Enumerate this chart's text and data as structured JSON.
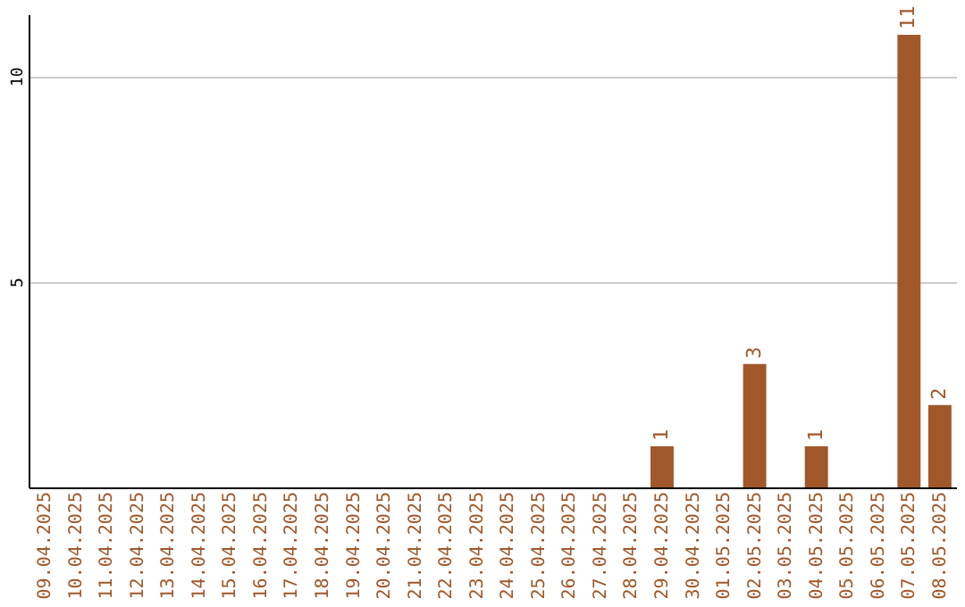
{
  "chart_data": {
    "type": "bar",
    "categories": [
      "09.04.2025",
      "10.04.2025",
      "11.04.2025",
      "12.04.2025",
      "13.04.2025",
      "14.04.2025",
      "15.04.2025",
      "16.04.2025",
      "17.04.2025",
      "18.04.2025",
      "19.04.2025",
      "20.04.2025",
      "21.04.2025",
      "22.04.2025",
      "23.04.2025",
      "24.04.2025",
      "25.04.2025",
      "26.04.2025",
      "27.04.2025",
      "28.04.2025",
      "29.04.2025",
      "30.04.2025",
      "01.05.2025",
      "02.05.2025",
      "03.05.2025",
      "04.05.2025",
      "05.05.2025",
      "06.05.2025",
      "07.05.2025",
      "08.05.2025"
    ],
    "values": [
      0,
      0,
      0,
      0,
      0,
      0,
      0,
      0,
      0,
      0,
      0,
      0,
      0,
      0,
      0,
      0,
      0,
      0,
      0,
      0,
      1,
      0,
      0,
      3,
      0,
      1,
      0,
      0,
      11,
      2
    ],
    "value_labels": [
      null,
      null,
      null,
      null,
      null,
      null,
      null,
      null,
      null,
      null,
      null,
      null,
      null,
      null,
      null,
      null,
      null,
      null,
      null,
      null,
      "1",
      null,
      null,
      "3",
      null,
      "1",
      null,
      null,
      "11",
      "2"
    ],
    "color": "#a0582a",
    "ylim": [
      0,
      11.5
    ],
    "yticks": [
      5,
      10
    ],
    "grid": "y"
  }
}
